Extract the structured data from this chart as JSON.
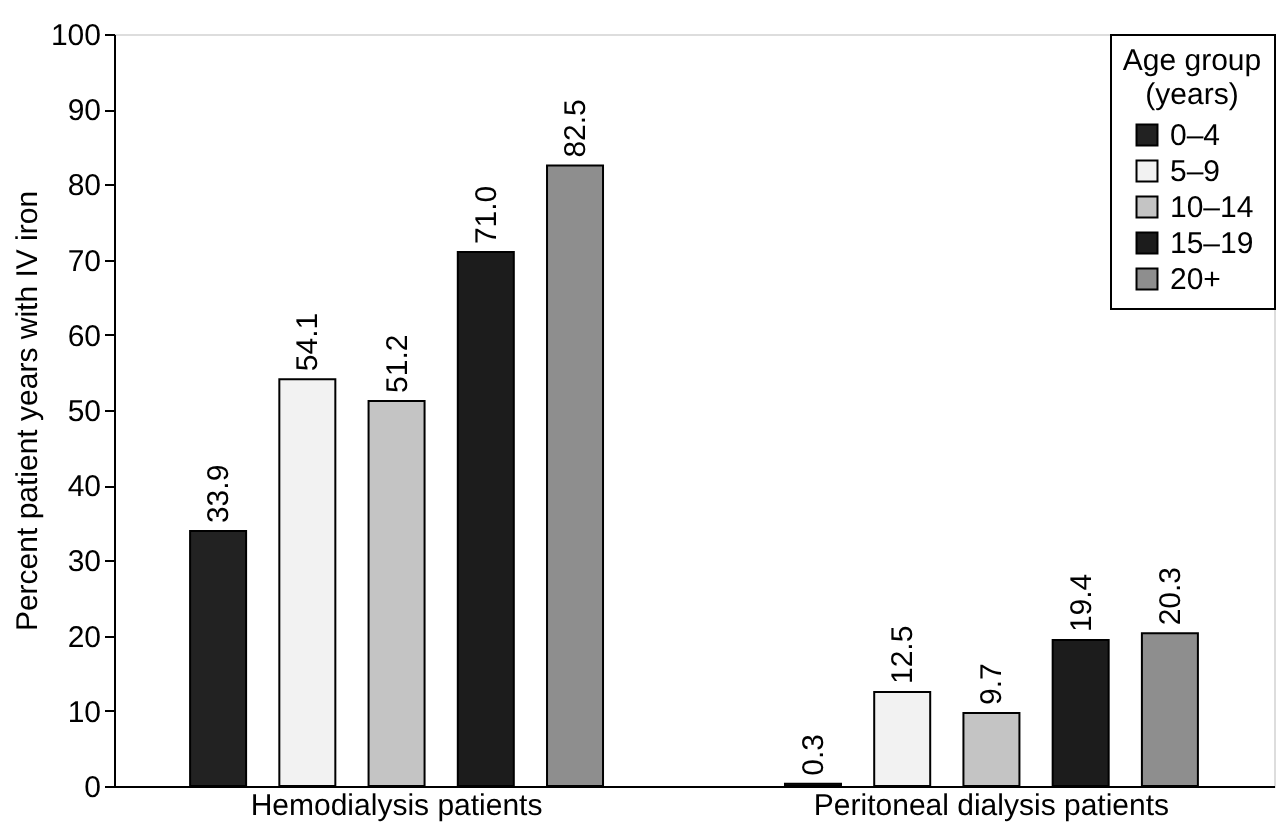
{
  "chart_data": {
    "type": "bar",
    "ylabel": "Percent patient years with IV iron",
    "legend_title": "Age group\n(years)",
    "categories": [
      "Hemodialysis patients",
      "Peritoneal dialysis patients"
    ],
    "series": [
      {
        "name": "0–4",
        "color": "#222222",
        "values": [
          33.9,
          0.3
        ]
      },
      {
        "name": "5–9",
        "color": "#f2f2f2",
        "values": [
          54.1,
          12.5
        ]
      },
      {
        "name": "10–14",
        "color": "#c4c4c4",
        "values": [
          51.2,
          9.7
        ]
      },
      {
        "name": "15–19",
        "color": "#1c1c1c",
        "values": [
          71.0,
          19.4
        ]
      },
      {
        "name": "20+",
        "color": "#8e8e8e",
        "values": [
          82.5,
          20.3
        ]
      }
    ],
    "value_labels": [
      [
        "33.9",
        "0.3"
      ],
      [
        "54.1",
        "12.5"
      ],
      [
        "51.2",
        "9.7"
      ],
      [
        "71.0",
        "19.4"
      ],
      [
        "82.5",
        "20.3"
      ]
    ],
    "ylim": [
      0,
      100
    ],
    "yticks": [
      0,
      10,
      20,
      30,
      40,
      50,
      60,
      70,
      80,
      90,
      100
    ],
    "grid": false,
    "legend": "top right"
  }
}
